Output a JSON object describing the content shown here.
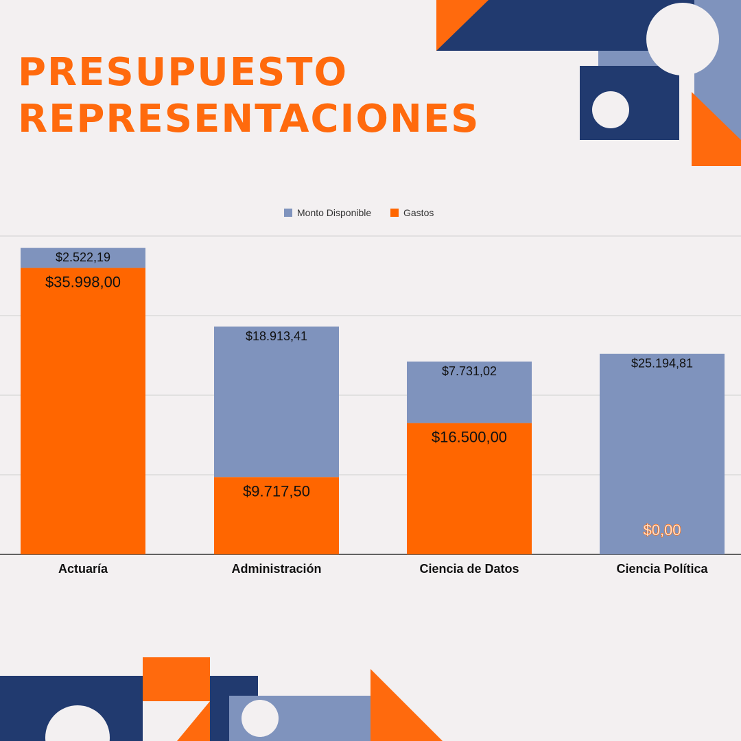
{
  "title": {
    "line1": "PRESUPUESTO",
    "line2": "REPRESENTACIONES"
  },
  "colors": {
    "orange": "#ff6600",
    "navy": "#213a6f",
    "slate": "#7f93bd",
    "background": "#f3f0f1",
    "label_light": "#ffe0cc"
  },
  "chart_data": {
    "type": "bar",
    "stacked": true,
    "categories": [
      "Actuaría",
      "Administración",
      "Ciencia de Datos",
      "Ciencia Política"
    ],
    "series": [
      {
        "name": "Gastos",
        "values": [
          35998.0,
          9717.5,
          16500.0,
          0.0
        ],
        "labels": [
          "$35.998,00",
          "$9.717,50",
          "$16.500,00",
          "$0,00"
        ]
      },
      {
        "name": "Monto Disponible",
        "values": [
          2522.19,
          18913.41,
          7731.02,
          25194.81
        ],
        "labels": [
          "$2.522,19",
          "$18.913,41",
          "$7.731,02",
          "$25.194,81"
        ]
      }
    ],
    "legend": [
      "Monto Disponible",
      "Gastos"
    ],
    "legend_position": "top-center",
    "ylim": [
      0,
      40000
    ],
    "grid": true,
    "title": "",
    "xlabel": "",
    "ylabel": ""
  }
}
